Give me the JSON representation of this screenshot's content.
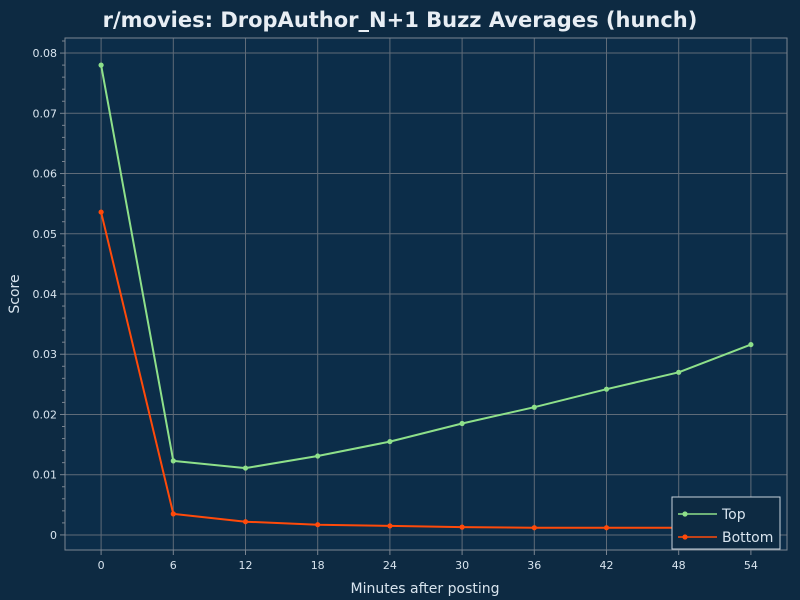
{
  "chart_data": {
    "type": "line",
    "title": "r/movies: DropAuthor_N+1 Buzz Averages (hunch)",
    "xlabel": "Minutes after posting",
    "ylabel": "Score",
    "x": [
      0,
      6,
      12,
      18,
      24,
      30,
      36,
      42,
      48,
      54
    ],
    "xticks": [
      0,
      6,
      12,
      18,
      24,
      30,
      36,
      42,
      48,
      54
    ],
    "xlim": [
      -3,
      57
    ],
    "ylim": [
      -0.0025,
      0.0825
    ],
    "yticks": [
      0,
      0.01,
      0.02,
      0.03,
      0.04,
      0.05,
      0.06,
      0.07,
      0.08
    ],
    "ytick_labels": [
      "0",
      "0.01",
      "0.02",
      "0.03",
      "0.04",
      "0.05",
      "0.06",
      "0.07",
      "0.08"
    ],
    "grid": true,
    "legend_position": "bottom-right",
    "series": [
      {
        "name": "Top",
        "color": "#8ee08a",
        "x": [
          0,
          6,
          12,
          18,
          24,
          30,
          36,
          42,
          48,
          54
        ],
        "values": [
          0.078,
          0.0123,
          0.0111,
          0.0131,
          0.0155,
          0.0185,
          0.0212,
          0.0242,
          0.027,
          0.0316
        ]
      },
      {
        "name": "Bottom",
        "color": "#ff4a0a",
        "x": [
          0,
          6,
          12,
          18,
          24,
          30,
          36,
          42,
          48
        ],
        "values": [
          0.0536,
          0.0035,
          0.0022,
          0.0017,
          0.0015,
          0.0013,
          0.0012,
          0.0012,
          0.0012
        ]
      }
    ]
  },
  "colors": {
    "background": "#0d2a42",
    "plot_background": "#0c2d49",
    "grid": "#5f6b78",
    "frame": "#7a8591"
  }
}
